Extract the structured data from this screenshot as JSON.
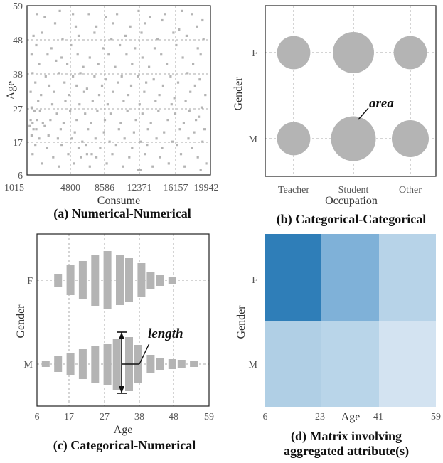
{
  "chart_data": [
    {
      "type": "scatter",
      "caption": "(a) Numerical-Numerical",
      "xlabel": "Consume",
      "ylabel": "Age",
      "xticks": [
        "1015",
        "4800",
        "8586",
        "12371",
        "16157",
        "19942"
      ],
      "yticks": [
        "6",
        "17",
        "27",
        "38",
        "48",
        "59"
      ],
      "xlim": [
        1015,
        19942
      ],
      "ylim": [
        6,
        59
      ],
      "grid": true,
      "marker_color": "#b4b4b4",
      "points": [
        [
          1800,
          57
        ],
        [
          2600,
          56
        ],
        [
          4200,
          58
        ],
        [
          5600,
          57
        ],
        [
          7300,
          57
        ],
        [
          9100,
          56
        ],
        [
          10300,
          57
        ],
        [
          12600,
          58
        ],
        [
          13800,
          56
        ],
        [
          15400,
          57
        ],
        [
          17200,
          58
        ],
        [
          18300,
          57
        ],
        [
          3700,
          54
        ],
        [
          5900,
          53
        ],
        [
          8100,
          53
        ],
        [
          9900,
          54
        ],
        [
          11700,
          53
        ],
        [
          13300,
          54
        ],
        [
          15100,
          55
        ],
        [
          16900,
          52
        ],
        [
          18800,
          53
        ],
        [
          19400,
          55
        ],
        [
          1400,
          50
        ],
        [
          2300,
          51
        ],
        [
          4500,
          49
        ],
        [
          6200,
          50
        ],
        [
          7900,
          51
        ],
        [
          9700,
          49
        ],
        [
          11200,
          50
        ],
        [
          12900,
          51
        ],
        [
          14600,
          49
        ],
        [
          16300,
          51
        ],
        [
          17700,
          50
        ],
        [
          19500,
          49
        ],
        [
          1700,
          47
        ],
        [
          3300,
          46
        ],
        [
          5400,
          47
        ],
        [
          8800,
          46
        ],
        [
          10600,
          47
        ],
        [
          12200,
          46
        ],
        [
          14300,
          46
        ],
        [
          16600,
          47
        ],
        [
          18900,
          46
        ],
        [
          1200,
          44
        ],
        [
          2900,
          44
        ],
        [
          4400,
          43
        ],
        [
          6100,
          44
        ],
        [
          7400,
          43
        ],
        [
          9400,
          44
        ],
        [
          11300,
          44
        ],
        [
          13000,
          43
        ],
        [
          15000,
          44
        ],
        [
          17300,
          43
        ],
        [
          19200,
          44
        ],
        [
          2000,
          41
        ],
        [
          3800,
          42
        ],
        [
          5000,
          41
        ],
        [
          6700,
          40
        ],
        [
          8300,
          41
        ],
        [
          10100,
          40
        ],
        [
          11900,
          41
        ],
        [
          13700,
          40
        ],
        [
          15600,
          41
        ],
        [
          18400,
          41
        ],
        [
          1300,
          38
        ],
        [
          2700,
          37
        ],
        [
          4100,
          38
        ],
        [
          5600,
          37
        ],
        [
          6400,
          38
        ],
        [
          7900,
          37
        ],
        [
          9100,
          36
        ],
        [
          10800,
          37
        ],
        [
          12500,
          37
        ],
        [
          14200,
          36
        ],
        [
          16000,
          37
        ],
        [
          17800,
          38
        ],
        [
          19100,
          36
        ],
        [
          1600,
          35
        ],
        [
          3100,
          34
        ],
        [
          4700,
          35
        ],
        [
          6000,
          34
        ],
        [
          7100,
          33
        ],
        [
          8700,
          34
        ],
        [
          10400,
          35
        ],
        [
          11800,
          34
        ],
        [
          13400,
          35
        ],
        [
          15200,
          34
        ],
        [
          16800,
          35
        ],
        [
          18600,
          34
        ],
        [
          1100,
          32
        ],
        [
          2200,
          31
        ],
        [
          3600,
          32
        ],
        [
          5200,
          31
        ],
        [
          6800,
          32
        ],
        [
          8400,
          31
        ],
        [
          9900,
          32
        ],
        [
          11500,
          31
        ],
        [
          13200,
          32
        ],
        [
          14800,
          31
        ],
        [
          16400,
          30
        ],
        [
          18100,
          32
        ],
        [
          19700,
          31
        ],
        [
          1900,
          29
        ],
        [
          3400,
          28
        ],
        [
          4800,
          29
        ],
        [
          6300,
          28
        ],
        [
          7700,
          29
        ],
        [
          9300,
          28
        ],
        [
          11000,
          29
        ],
        [
          12700,
          28
        ],
        [
          14400,
          29
        ],
        [
          16100,
          28
        ],
        [
          17600,
          29
        ],
        [
          19300,
          27
        ],
        [
          1200,
          27
        ],
        [
          1500,
          26
        ],
        [
          2100,
          26
        ],
        [
          3900,
          25
        ],
        [
          5300,
          26
        ],
        [
          6900,
          25
        ],
        [
          8200,
          26
        ],
        [
          9600,
          25
        ],
        [
          11400,
          26
        ],
        [
          13000,
          25
        ],
        [
          14700,
          26
        ],
        [
          16500,
          25
        ],
        [
          18000,
          26
        ],
        [
          19000,
          24
        ],
        [
          1100,
          23
        ],
        [
          1300,
          22
        ],
        [
          1800,
          23
        ],
        [
          2400,
          22
        ],
        [
          3200,
          23
        ],
        [
          4600,
          22
        ],
        [
          6000,
          23
        ],
        [
          7500,
          22
        ],
        [
          9000,
          23
        ],
        [
          10700,
          22
        ],
        [
          12300,
          23
        ],
        [
          13900,
          22
        ],
        [
          15700,
          23
        ],
        [
          17400,
          22
        ],
        [
          18700,
          23
        ],
        [
          1000,
          21
        ],
        [
          1400,
          20
        ],
        [
          1700,
          20
        ],
        [
          2600,
          21
        ],
        [
          4300,
          20
        ],
        [
          5800,
          19
        ],
        [
          7200,
          20
        ],
        [
          8900,
          19
        ],
        [
          10500,
          20
        ],
        [
          12100,
          19
        ],
        [
          13600,
          20
        ],
        [
          15300,
          19
        ],
        [
          17000,
          20
        ],
        [
          18500,
          19
        ],
        [
          19600,
          20
        ],
        [
          1200,
          18
        ],
        [
          2000,
          17
        ],
        [
          3000,
          18
        ],
        [
          4000,
          17
        ],
        [
          5500,
          17
        ],
        [
          6600,
          16
        ],
        [
          8000,
          17
        ],
        [
          9500,
          16
        ],
        [
          11100,
          17
        ],
        [
          12800,
          16
        ],
        [
          14500,
          17
        ],
        [
          16200,
          16
        ],
        [
          17900,
          17
        ],
        [
          19400,
          16
        ],
        [
          1600,
          15
        ],
        [
          2800,
          14
        ],
        [
          4400,
          15
        ],
        [
          6200,
          14
        ],
        [
          7000,
          15
        ],
        [
          8500,
          14
        ],
        [
          10200,
          15
        ],
        [
          11900,
          14
        ],
        [
          13500,
          15
        ],
        [
          15100,
          14
        ],
        [
          16700,
          15
        ],
        [
          18300,
          14
        ],
        [
          1300,
          12
        ],
        [
          3500,
          11
        ],
        [
          5100,
          12
        ],
        [
          6500,
          11
        ],
        [
          7100,
          12
        ],
        [
          7600,
          12
        ],
        [
          8100,
          11
        ],
        [
          9800,
          12
        ],
        [
          11600,
          11
        ],
        [
          13300,
          12
        ],
        [
          14900,
          11
        ],
        [
          17100,
          12
        ],
        [
          18900,
          11
        ],
        [
          2300,
          9
        ],
        [
          4100,
          8
        ],
        [
          5700,
          9
        ],
        [
          7400,
          8
        ],
        [
          9200,
          9
        ],
        [
          10900,
          8
        ],
        [
          12500,
          7
        ],
        [
          12800,
          7
        ],
        [
          14100,
          8
        ],
        [
          15800,
          9
        ],
        [
          17500,
          8
        ],
        [
          19200,
          7
        ],
        [
          19800,
          9
        ]
      ]
    },
    {
      "type": "bubble",
      "caption": "(b) Categorical-Categorical",
      "xlabel": "Occupation",
      "ylabel": "Gender",
      "x_categories": [
        "Teacher",
        "Student",
        "Other"
      ],
      "y_categories": [
        "F",
        "M"
      ],
      "annotation": "area",
      "bubble_color": "#b4b4b4",
      "values": [
        {
          "x": "Teacher",
          "y": "F",
          "value": 0.55
        },
        {
          "x": "Student",
          "y": "F",
          "value": 0.85
        },
        {
          "x": "Other",
          "y": "F",
          "value": 0.55
        },
        {
          "x": "Teacher",
          "y": "M",
          "value": 0.55
        },
        {
          "x": "Student",
          "y": "M",
          "value": 1.0
        },
        {
          "x": "Other",
          "y": "M",
          "value": 0.68
        }
      ]
    },
    {
      "type": "bar",
      "orientation": "vertical-symmetric",
      "caption": "(c) Categorical-Numerical",
      "xlabel": "Age",
      "ylabel": "Gender",
      "xticks": [
        "6",
        "17",
        "27",
        "38",
        "48",
        "59"
      ],
      "xlim": [
        6,
        59
      ],
      "y_categories": [
        "F",
        "M"
      ],
      "annotation": "length",
      "bar_color": "#b4b4b4",
      "series": [
        {
          "category": "F",
          "values": [
            {
              "age": 11,
              "length": 18
            },
            {
              "age": 15,
              "length": 42
            },
            {
              "age": 19,
              "length": 54
            },
            {
              "age": 23,
              "length": 72
            },
            {
              "age": 27,
              "length": 82
            },
            {
              "age": 31,
              "length": 70
            },
            {
              "age": 34,
              "length": 62
            },
            {
              "age": 38,
              "length": 48
            },
            {
              "age": 41,
              "length": 24
            },
            {
              "age": 44,
              "length": 16
            },
            {
              "age": 48,
              "length": 10
            }
          ]
        },
        {
          "category": "M",
          "values": [
            {
              "age": 7,
              "length": 8
            },
            {
              "age": 11,
              "length": 22
            },
            {
              "age": 15,
              "length": 30
            },
            {
              "age": 19,
              "length": 42
            },
            {
              "age": 23,
              "length": 52
            },
            {
              "age": 27,
              "length": 58
            },
            {
              "age": 30,
              "length": 72
            },
            {
              "age": 34,
              "length": 76
            },
            {
              "age": 37,
              "length": 54
            },
            {
              "age": 41,
              "length": 26
            },
            {
              "age": 44,
              "length": 16
            },
            {
              "age": 48,
              "length": 14
            },
            {
              "age": 51,
              "length": 12
            },
            {
              "age": 55,
              "length": 8
            }
          ]
        }
      ]
    },
    {
      "type": "heatmap",
      "caption_lines": [
        "(d) Matrix involving",
        "aggregated attribute(s)"
      ],
      "xlabel": "Age",
      "ylabel": "Gender",
      "x_edges": [
        6,
        23,
        41,
        59
      ],
      "y_categories": [
        "F",
        "M"
      ],
      "cells": [
        {
          "y": "F",
          "bin": 0,
          "color": "#2f7eb8"
        },
        {
          "y": "F",
          "bin": 1,
          "color": "#7fb1d8"
        },
        {
          "y": "F",
          "bin": 2,
          "color": "#b7d3e8"
        },
        {
          "y": "M",
          "bin": 0,
          "color": "#b0cfe5"
        },
        {
          "y": "M",
          "bin": 1,
          "color": "#b9d5e9"
        },
        {
          "y": "M",
          "bin": 2,
          "color": "#d3e3f1"
        }
      ]
    }
  ]
}
